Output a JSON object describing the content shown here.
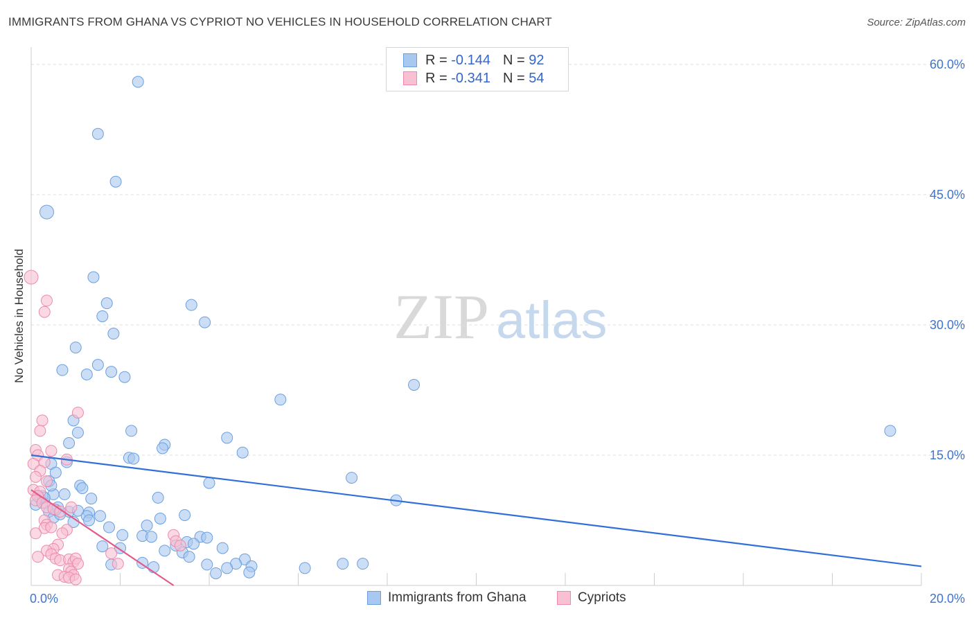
{
  "header": {
    "title": "IMMIGRANTS FROM GHANA VS CYPRIOT NO VEHICLES IN HOUSEHOLD CORRELATION CHART",
    "source": "Source: ZipAtlas.com"
  },
  "legend": {
    "rows": [
      {
        "r_label": "R =",
        "r_value": "-0.144",
        "n_label": "N =",
        "n_value": "92",
        "color": "#a9c8f0",
        "stroke": "#6a9fe0"
      },
      {
        "r_label": "R =",
        "r_value": "-0.341",
        "n_label": "N =",
        "n_value": "54",
        "color": "#f8c0d2",
        "stroke": "#ec8aaa"
      }
    ]
  },
  "bottom_legend": {
    "items": [
      {
        "label": "Immigrants from Ghana",
        "color": "#a9c8f0",
        "stroke": "#6a9fe0"
      },
      {
        "label": "Cypriots",
        "color": "#f8c0d2",
        "stroke": "#ec8aaa"
      }
    ]
  },
  "watermark": {
    "zip": "ZIP",
    "atlas": "atlas"
  },
  "chart_data": {
    "type": "scatter",
    "title": "IMMIGRANTS FROM GHANA VS CYPRIOT NO VEHICLES IN HOUSEHOLD CORRELATION CHART",
    "xlabel": "",
    "ylabel": "No Vehicles in Household",
    "xlim": [
      0,
      20
    ],
    "ylim": [
      0,
      60
    ],
    "x_tick_labels": [
      "0.0%",
      "20.0%"
    ],
    "y_ticks": [
      15,
      30,
      45,
      60
    ],
    "y_tick_labels": [
      "15.0%",
      "30.0%",
      "45.0%",
      "60.0%"
    ],
    "grid": "horizontal dashed",
    "legend_position": "top-center",
    "series": [
      {
        "name": "Immigrants from Ghana",
        "color": "#a9c8f0",
        "line_color": "#2f6fd6",
        "trend": {
          "x": [
            0,
            20
          ],
          "y": [
            15.0,
            2.2
          ]
        },
        "points": [
          [
            2.4,
            58.0
          ],
          [
            1.5,
            52.0
          ],
          [
            1.9,
            46.5
          ],
          [
            0.35,
            43.0
          ],
          [
            1.4,
            35.5
          ],
          [
            1.7,
            32.5
          ],
          [
            1.6,
            31.0
          ],
          [
            1.85,
            29.0
          ],
          [
            3.6,
            32.3
          ],
          [
            3.9,
            30.3
          ],
          [
            1.0,
            27.4
          ],
          [
            0.7,
            24.8
          ],
          [
            1.5,
            25.4
          ],
          [
            1.8,
            24.6
          ],
          [
            1.25,
            24.3
          ],
          [
            2.1,
            24.0
          ],
          [
            8.6,
            23.1
          ],
          [
            5.6,
            21.4
          ],
          [
            0.95,
            19.0
          ],
          [
            1.05,
            17.6
          ],
          [
            2.25,
            17.8
          ],
          [
            4.4,
            17.0
          ],
          [
            0.85,
            16.4
          ],
          [
            3.0,
            16.2
          ],
          [
            2.95,
            15.8
          ],
          [
            4.75,
            15.3
          ],
          [
            2.2,
            14.7
          ],
          [
            2.3,
            14.6
          ],
          [
            0.45,
            14.0
          ],
          [
            0.8,
            14.2
          ],
          [
            19.3,
            17.8
          ],
          [
            7.2,
            12.4
          ],
          [
            0.55,
            13.0
          ],
          [
            0.4,
            12.0
          ],
          [
            1.1,
            11.5
          ],
          [
            1.15,
            11.2
          ],
          [
            4.0,
            11.8
          ],
          [
            0.5,
            10.5
          ],
          [
            0.75,
            10.5
          ],
          [
            0.15,
            10.2
          ],
          [
            0.2,
            10.0
          ],
          [
            1.35,
            10.0
          ],
          [
            2.85,
            10.1
          ],
          [
            8.2,
            9.8
          ],
          [
            0.3,
            9.5
          ],
          [
            0.4,
            8.5
          ],
          [
            0.85,
            8.5
          ],
          [
            1.3,
            8.4
          ],
          [
            1.25,
            8.0
          ],
          [
            1.3,
            7.5
          ],
          [
            0.5,
            7.8
          ],
          [
            2.9,
            7.7
          ],
          [
            3.45,
            8.1
          ],
          [
            2.6,
            6.9
          ],
          [
            1.75,
            6.7
          ],
          [
            2.05,
            5.8
          ],
          [
            2.5,
            5.7
          ],
          [
            2.7,
            5.6
          ],
          [
            3.8,
            5.6
          ],
          [
            3.95,
            5.5
          ],
          [
            3.5,
            5.0
          ],
          [
            3.65,
            4.8
          ],
          [
            3.25,
            4.6
          ],
          [
            1.6,
            4.5
          ],
          [
            2.0,
            4.3
          ],
          [
            4.3,
            4.3
          ],
          [
            3.0,
            4.0
          ],
          [
            3.4,
            3.8
          ],
          [
            3.55,
            3.3
          ],
          [
            2.5,
            2.6
          ],
          [
            1.8,
            2.4
          ],
          [
            4.8,
            3.0
          ],
          [
            4.6,
            2.5
          ],
          [
            4.95,
            2.2
          ],
          [
            3.95,
            2.4
          ],
          [
            4.4,
            2.0
          ],
          [
            4.15,
            1.4
          ],
          [
            4.9,
            1.5
          ],
          [
            6.15,
            2.0
          ],
          [
            7.0,
            2.5
          ],
          [
            7.45,
            2.5
          ],
          [
            2.75,
            2.1
          ],
          [
            0.6,
            9.0
          ],
          [
            0.25,
            10.3
          ],
          [
            0.65,
            8.2
          ],
          [
            1.05,
            8.6
          ],
          [
            1.55,
            8.0
          ],
          [
            0.95,
            7.3
          ],
          [
            0.1,
            9.3
          ],
          [
            0.3,
            10.1
          ],
          [
            0.55,
            8.7
          ],
          [
            0.45,
            11.5
          ]
        ]
      },
      {
        "name": "Cypriots",
        "color": "#f8c0d2",
        "line_color": "#e05a8a",
        "trend": {
          "x": [
            0,
            3.2
          ],
          "y": [
            11.0,
            0.0
          ]
        },
        "points": [
          [
            0.0,
            35.5
          ],
          [
            0.35,
            32.8
          ],
          [
            0.3,
            31.5
          ],
          [
            1.05,
            19.9
          ],
          [
            0.25,
            19.0
          ],
          [
            0.2,
            17.8
          ],
          [
            0.1,
            15.6
          ],
          [
            0.45,
            15.5
          ],
          [
            0.15,
            15.0
          ],
          [
            0.8,
            14.5
          ],
          [
            0.3,
            14.2
          ],
          [
            0.05,
            14.0
          ],
          [
            0.2,
            13.2
          ],
          [
            0.1,
            12.5
          ],
          [
            0.35,
            12.0
          ],
          [
            0.05,
            11.0
          ],
          [
            0.2,
            10.8
          ],
          [
            0.15,
            10.3
          ],
          [
            0.1,
            9.8
          ],
          [
            0.25,
            9.5
          ],
          [
            0.35,
            9.0
          ],
          [
            0.5,
            8.8
          ],
          [
            0.65,
            8.5
          ],
          [
            0.9,
            9.0
          ],
          [
            0.3,
            7.5
          ],
          [
            0.35,
            7.0
          ],
          [
            0.3,
            6.6
          ],
          [
            0.45,
            6.7
          ],
          [
            0.8,
            6.4
          ],
          [
            0.7,
            6.0
          ],
          [
            0.1,
            6.0
          ],
          [
            3.2,
            5.8
          ],
          [
            3.25,
            5.1
          ],
          [
            3.35,
            4.6
          ],
          [
            0.6,
            4.7
          ],
          [
            0.5,
            4.2
          ],
          [
            0.35,
            4.0
          ],
          [
            0.45,
            3.6
          ],
          [
            0.15,
            3.3
          ],
          [
            0.55,
            3.1
          ],
          [
            0.65,
            2.9
          ],
          [
            0.85,
            3.0
          ],
          [
            0.95,
            2.7
          ],
          [
            1.0,
            3.1
          ],
          [
            1.05,
            2.5
          ],
          [
            0.85,
            1.9
          ],
          [
            0.9,
            1.6
          ],
          [
            0.95,
            1.2
          ],
          [
            0.6,
            1.2
          ],
          [
            0.75,
            1.0
          ],
          [
            0.85,
            0.9
          ],
          [
            1.0,
            0.7
          ],
          [
            1.8,
            3.7
          ],
          [
            1.95,
            2.5
          ]
        ]
      }
    ]
  }
}
